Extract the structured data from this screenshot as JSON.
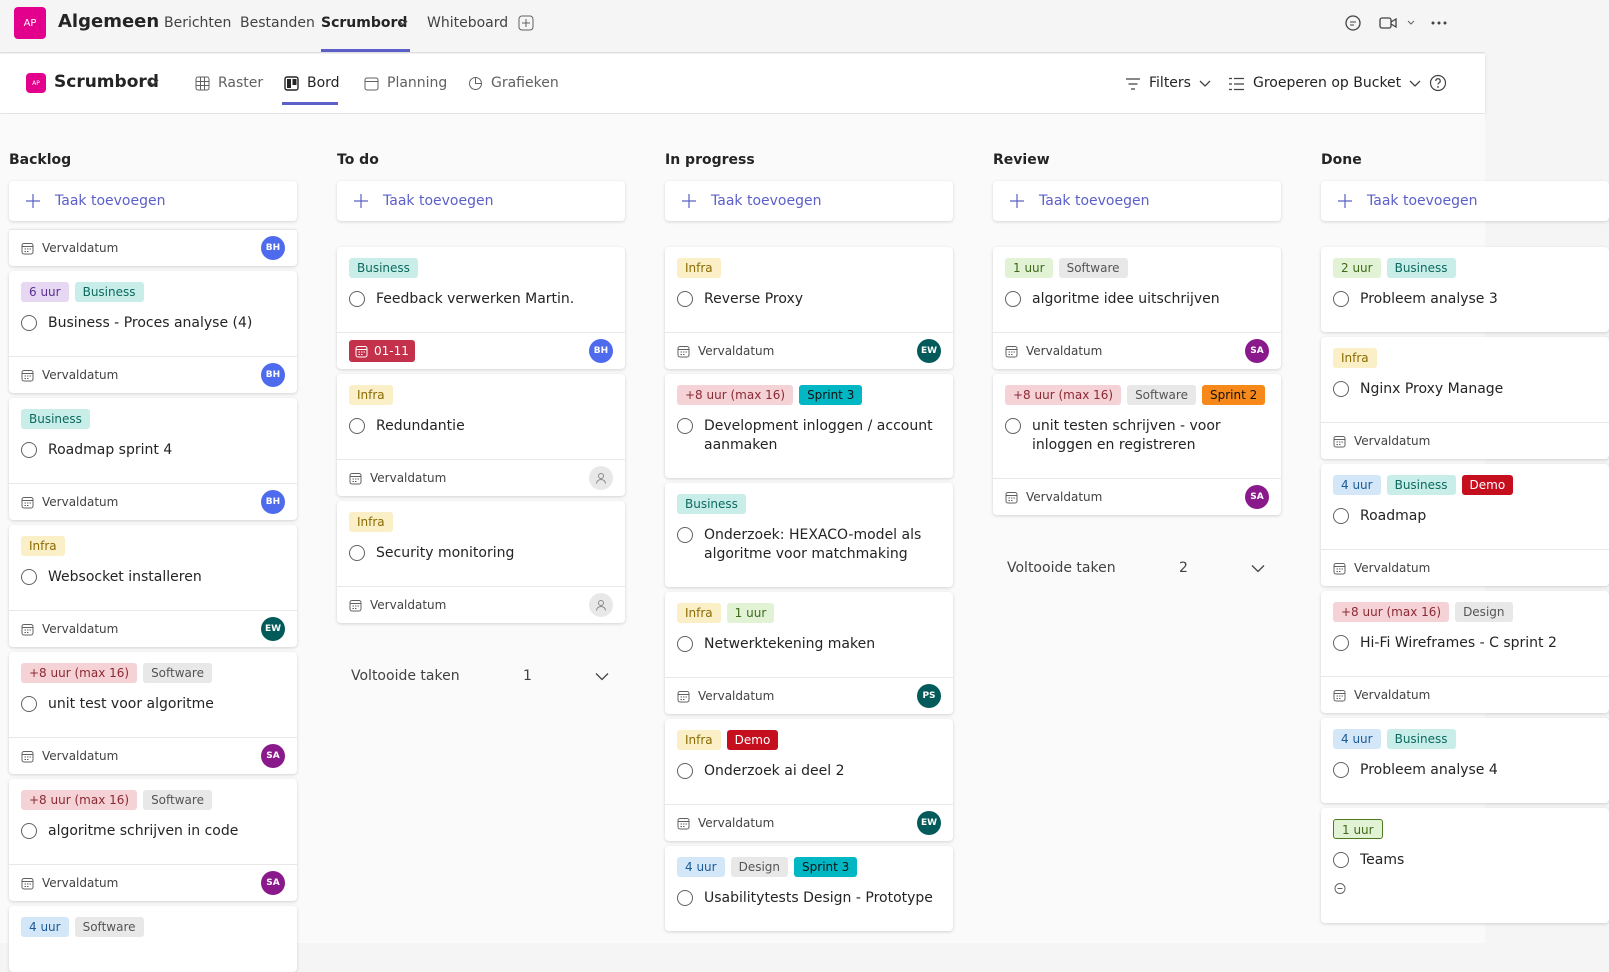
{
  "header": {
    "badge": "AP",
    "title": "Algemeen",
    "tabs": [
      "Berichten",
      "Bestanden",
      "Scrumbord",
      "Whiteboard"
    ]
  },
  "toolbar": {
    "badge": "AP",
    "title": "Scrumbord",
    "views": [
      "Raster",
      "Bord",
      "Planning",
      "Grafieken"
    ],
    "filters": "Filters",
    "group": "Groeperen op Bucket"
  },
  "buckets": [
    {
      "name": "Backlog",
      "add": "Taak toevoegen",
      "tasks": [
        {
          "labels": [],
          "due": {
            "text": "Vervaldatum"
          },
          "assignee": {
            "initials": "BH",
            "color": "#4f6bed"
          }
        },
        {
          "labels": [
            {
              "text": "6 uur",
              "color": "purple"
            },
            {
              "text": "Business",
              "color": "teal"
            }
          ],
          "title": "Business - Proces analyse (4)",
          "due": {
            "text": "Vervaldatum"
          },
          "assignee": {
            "initials": "BH",
            "color": "#4f6bed"
          }
        },
        {
          "labels": [
            {
              "text": "Business",
              "color": "teal"
            }
          ],
          "title": "Roadmap sprint 4",
          "due": {
            "text": "Vervaldatum"
          },
          "assignee": {
            "initials": "BH",
            "color": "#4f6bed"
          }
        },
        {
          "labels": [
            {
              "text": "Infra",
              "color": "yellow"
            }
          ],
          "title": "Websocket installeren",
          "due": {
            "text": "Vervaldatum"
          },
          "assignee": {
            "initials": "EW",
            "color": "#035a5a"
          }
        },
        {
          "labels": [
            {
              "text": "+8 uur (max 16)",
              "color": "rose"
            },
            {
              "text": "Software",
              "color": "gray"
            }
          ],
          "title": "unit test voor algoritme",
          "due": {
            "text": "Vervaldatum"
          },
          "assignee": {
            "initials": "SA",
            "color": "#8a1a8c"
          }
        },
        {
          "labels": [
            {
              "text": "+8 uur (max 16)",
              "color": "rose"
            },
            {
              "text": "Software",
              "color": "gray"
            }
          ],
          "title": "algoritme schrijven in code",
          "due": {
            "text": "Vervaldatum"
          },
          "assignee": {
            "initials": "SA",
            "color": "#8a1a8c"
          }
        },
        {
          "labels": [
            {
              "text": "4 uur",
              "color": "blue"
            },
            {
              "text": "Software",
              "color": "gray"
            }
          ]
        }
      ]
    },
    {
      "name": "To do",
      "add": "Taak toevoegen",
      "tasks": [
        {
          "labels": [
            {
              "text": "Business",
              "color": "teal"
            }
          ],
          "title": "Feedback verwerken Martin.",
          "due": {
            "text": "01-11",
            "overdue": true
          },
          "assignee": {
            "initials": "BH",
            "color": "#4f6bed"
          }
        },
        {
          "labels": [
            {
              "text": "Infra",
              "color": "yellow"
            }
          ],
          "title": "Redundantie",
          "due": {
            "text": "Vervaldatum"
          },
          "assignee": null
        },
        {
          "labels": [
            {
              "text": "Infra",
              "color": "yellow"
            }
          ],
          "title": "Security monitoring",
          "due": {
            "text": "Vervaldatum"
          },
          "assignee": null
        }
      ],
      "completed": {
        "label": "Voltooide taken",
        "count": "1"
      }
    },
    {
      "name": "In progress",
      "add": "Taak toevoegen",
      "tasks": [
        {
          "labels": [
            {
              "text": "Infra",
              "color": "yellow"
            }
          ],
          "title": "Reverse Proxy",
          "due": {
            "text": "Vervaldatum"
          },
          "assignee": {
            "initials": "EW",
            "color": "#035a5a"
          }
        },
        {
          "labels": [
            {
              "text": "+8 uur (max 16)",
              "color": "rose"
            },
            {
              "text": "Sprint 3",
              "color": "cyan"
            }
          ],
          "title": "Development inloggen / account aanmaken"
        },
        {
          "labels": [
            {
              "text": "Business",
              "color": "teal"
            }
          ],
          "title": "Onderzoek: HEXACO-model als algoritme voor matchmaking"
        },
        {
          "labels": [
            {
              "text": "Infra",
              "color": "yellow"
            },
            {
              "text": "1 uur",
              "color": "green"
            }
          ],
          "title": "Netwerktekening maken",
          "due": {
            "text": "Vervaldatum"
          },
          "assignee": {
            "initials": "PS",
            "color": "#035a5a"
          }
        },
        {
          "labels": [
            {
              "text": "Infra",
              "color": "yellow"
            },
            {
              "text": "Demo",
              "color": "darkred"
            }
          ],
          "title": "Onderzoek ai deel 2",
          "due": {
            "text": "Vervaldatum"
          },
          "assignee": {
            "initials": "EW",
            "color": "#035a5a"
          }
        },
        {
          "labels": [
            {
              "text": "4 uur",
              "color": "blue"
            },
            {
              "text": "Design",
              "color": "gray"
            },
            {
              "text": "Sprint 3",
              "color": "cyan"
            }
          ],
          "title": "Usabilitytests Design - Prototype"
        }
      ]
    },
    {
      "name": "Review",
      "add": "Taak toevoegen",
      "tasks": [
        {
          "labels": [
            {
              "text": "1 uur",
              "color": "green"
            },
            {
              "text": "Software",
              "color": "gray"
            }
          ],
          "title": "algoritme idee uitschrijven",
          "due": {
            "text": "Vervaldatum"
          },
          "assignee": {
            "initials": "SA",
            "color": "#8a1a8c"
          }
        },
        {
          "labels": [
            {
              "text": "+8 uur (max 16)",
              "color": "rose"
            },
            {
              "text": "Software",
              "color": "gray"
            },
            {
              "text": "Sprint 2",
              "color": "orange"
            }
          ],
          "title": "unit testen schrijven - voor inloggen en registreren",
          "due": {
            "text": "Vervaldatum"
          },
          "assignee": {
            "initials": "SA",
            "color": "#8a1a8c"
          }
        }
      ],
      "completed": {
        "label": "Voltooide taken",
        "count": "2"
      }
    },
    {
      "name": "Done",
      "add": "Taak toevoegen",
      "tasks": [
        {
          "labels": [
            {
              "text": "2 uur",
              "color": "green"
            },
            {
              "text": "Business",
              "color": "teal"
            }
          ],
          "title": "Probleem analyse 3"
        },
        {
          "labels": [
            {
              "text": "Infra",
              "color": "yellow"
            }
          ],
          "title": "Nginx Proxy Manage",
          "due": {
            "text": "Vervaldatum"
          }
        },
        {
          "labels": [
            {
              "text": "4 uur",
              "color": "blue"
            },
            {
              "text": "Business",
              "color": "teal"
            },
            {
              "text": "Demo",
              "color": "darkred"
            }
          ],
          "title": "Roadmap",
          "due": {
            "text": "Vervaldatum"
          }
        },
        {
          "labels": [
            {
              "text": "+8 uur (max 16)",
              "color": "rose"
            },
            {
              "text": "Design",
              "color": "gray"
            }
          ],
          "title": "Hi-Fi Wireframes - C sprint 2",
          "due": {
            "text": "Vervaldatum"
          }
        },
        {
          "labels": [
            {
              "text": "4 uur",
              "color": "blue"
            },
            {
              "text": "Business",
              "color": "teal"
            }
          ],
          "title": "Probleem analyse 4"
        },
        {
          "labels": [
            {
              "text": "1 uur",
              "color": "greenline"
            }
          ],
          "title": "Teams",
          "comment": true
        }
      ]
    }
  ]
}
